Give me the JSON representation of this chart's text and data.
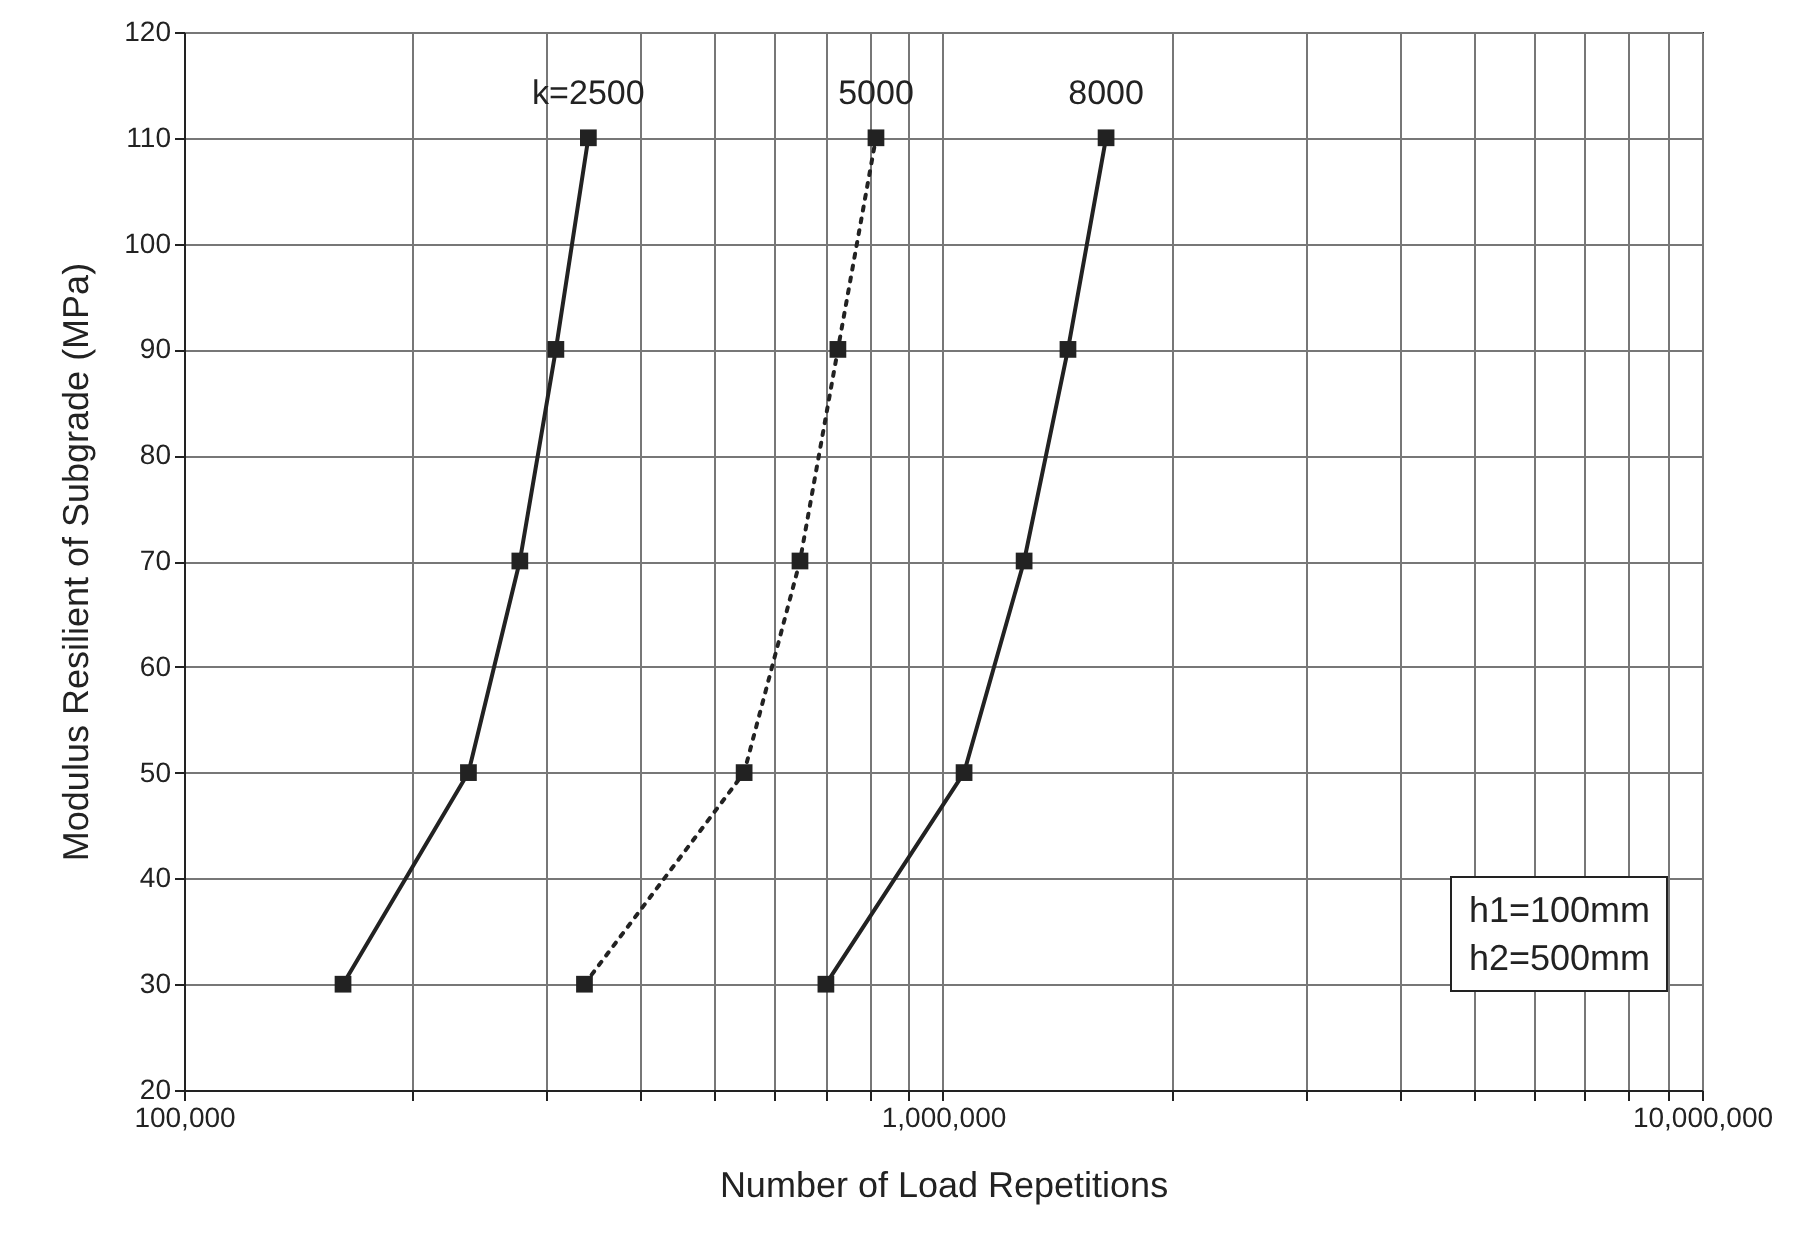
{
  "chart_data": {
    "type": "line",
    "xlabel": "Number of Load Repetitions",
    "ylabel": "Modulus Resilient of Subgrade (MPa)",
    "log": "x",
    "grid": true,
    "marker": "square",
    "xlim": [
      100000,
      10000000
    ],
    "xticks": [
      {
        "value": 100000,
        "label": "100,000"
      },
      {
        "value": 200000,
        "label": null
      },
      {
        "value": 300000,
        "label": null
      },
      {
        "value": 400000,
        "label": null
      },
      {
        "value": 500000,
        "label": null
      },
      {
        "value": 600000,
        "label": null
      },
      {
        "value": 700000,
        "label": null
      },
      {
        "value": 800000,
        "label": null
      },
      {
        "value": 900000,
        "label": null
      },
      {
        "value": 1000000,
        "label": "1,000,000"
      },
      {
        "value": 2000000,
        "label": null
      },
      {
        "value": 3000000,
        "label": null
      },
      {
        "value": 4000000,
        "label": null
      },
      {
        "value": 5000000,
        "label": null
      },
      {
        "value": 6000000,
        "label": null
      },
      {
        "value": 7000000,
        "label": null
      },
      {
        "value": 8000000,
        "label": null
      },
      {
        "value": 9000000,
        "label": null
      },
      {
        "value": 10000000,
        "label": "10,000,000"
      }
    ],
    "ylim": [
      20,
      120
    ],
    "yticks": [
      20,
      30,
      40,
      50,
      60,
      70,
      80,
      90,
      100,
      110,
      120
    ],
    "series": [
      {
        "name": "k=2500",
        "color": "#222222",
        "line_style": "solid",
        "x": [
          162000,
          237000,
          277000,
          309000,
          341000
        ],
        "values": [
          30,
          50,
          70,
          90,
          110
        ]
      },
      {
        "name": "5000",
        "color": "#222222",
        "line_style": "dotted",
        "x": [
          337000,
          547000,
          648000,
          727000,
          816000
        ],
        "values": [
          30,
          50,
          70,
          90,
          110
        ]
      },
      {
        "name": "8000",
        "color": "#222222",
        "line_style": "solid",
        "x": [
          701000,
          1066000,
          1279000,
          1461000,
          1640000
        ],
        "values": [
          30,
          50,
          70,
          90,
          110
        ]
      }
    ],
    "annotations": [
      "h1=100mm",
      "h2=500mm"
    ]
  }
}
